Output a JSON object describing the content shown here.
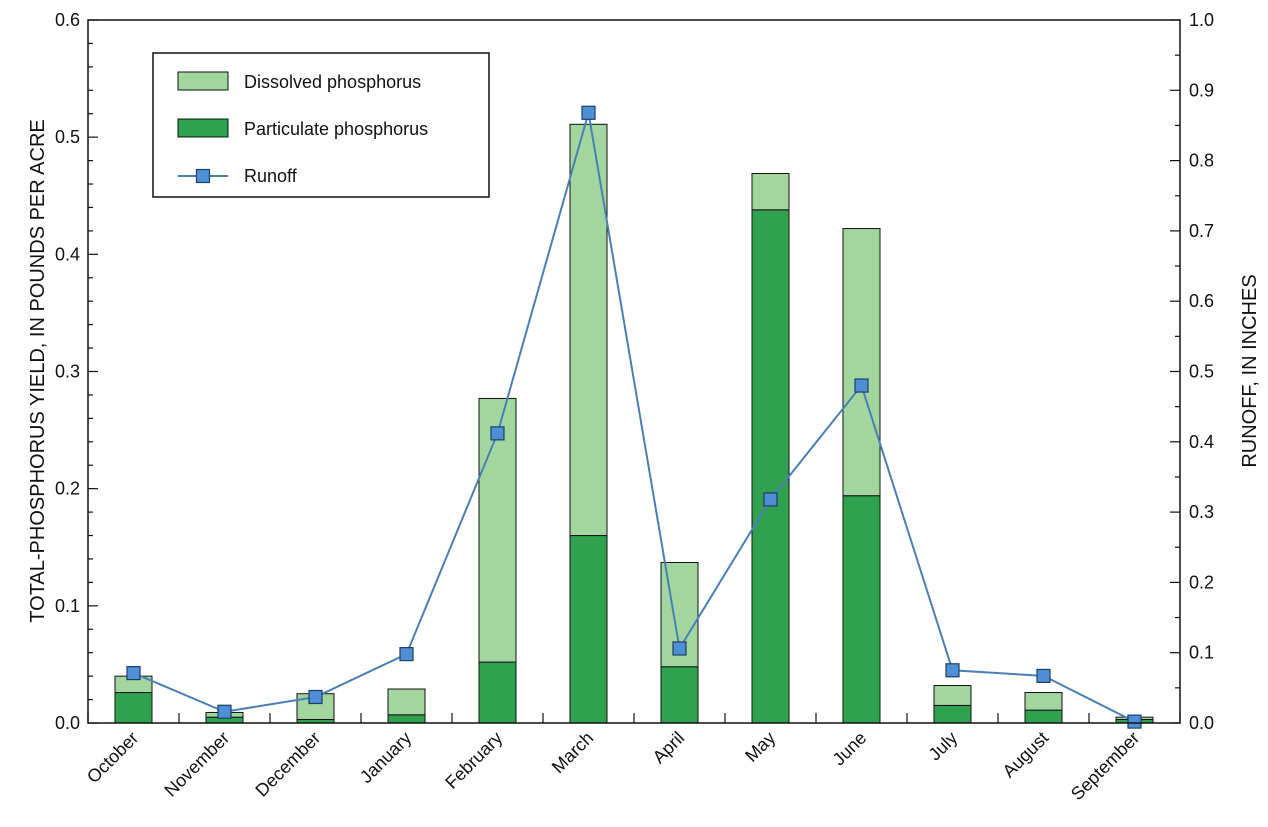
{
  "chart_data": {
    "type": "bar",
    "stacked": true,
    "title": "",
    "categories": [
      "October",
      "November",
      "December",
      "January",
      "February",
      "March",
      "April",
      "May",
      "June",
      "July",
      "August",
      "September"
    ],
    "series": [
      {
        "name": "Particulate phosphorus",
        "axis": "left",
        "type": "bar",
        "values": [
          0.026,
          0.005,
          0.003,
          0.007,
          0.052,
          0.16,
          0.048,
          0.438,
          0.194,
          0.015,
          0.011,
          0.003
        ]
      },
      {
        "name": "Dissolved phosphorus",
        "axis": "left",
        "type": "bar",
        "values": [
          0.014,
          0.004,
          0.022,
          0.022,
          0.225,
          0.351,
          0.089,
          0.031,
          0.228,
          0.017,
          0.015,
          0.002
        ]
      },
      {
        "name": "Runoff",
        "axis": "right",
        "type": "line",
        "marker": "square",
        "values": [
          0.071,
          0.016,
          0.037,
          0.098,
          0.412,
          0.868,
          0.106,
          0.318,
          0.48,
          0.075,
          0.067,
          0.002
        ]
      }
    ],
    "ylabel_left": "TOTAL-PHOSPHORUS YIELD, IN POUNDS PER ACRE",
    "ylabel_right": "RUNOFF, IN INCHES",
    "ylim_left": [
      0,
      0.6
    ],
    "ylim_right": [
      0,
      1.0
    ],
    "yticks_left": [
      "0.0",
      "0.1",
      "0.2",
      "0.3",
      "0.4",
      "0.5",
      "0.6"
    ],
    "yticks_right": [
      "0.0",
      "0.1",
      "0.2",
      "0.3",
      "0.4",
      "0.5",
      "0.6",
      "0.7",
      "0.8",
      "0.9",
      "1.0"
    ],
    "grid": false,
    "legend_position": "top-left",
    "legend": [
      {
        "label": "Dissolved phosphorus",
        "kind": "bar",
        "color": "#a3d69f"
      },
      {
        "label": "Particulate phosphorus",
        "kind": "bar",
        "color": "#2fa14f"
      },
      {
        "label": "Runoff",
        "kind": "line",
        "color": "#4a7fb5",
        "marker_color": "#4f8fd6"
      }
    ],
    "colors": {
      "particulate": "#2fa14f",
      "dissolved": "#a3d69f",
      "runoff_line": "#4a7fb5",
      "runoff_marker": "#4f8fd6"
    }
  }
}
